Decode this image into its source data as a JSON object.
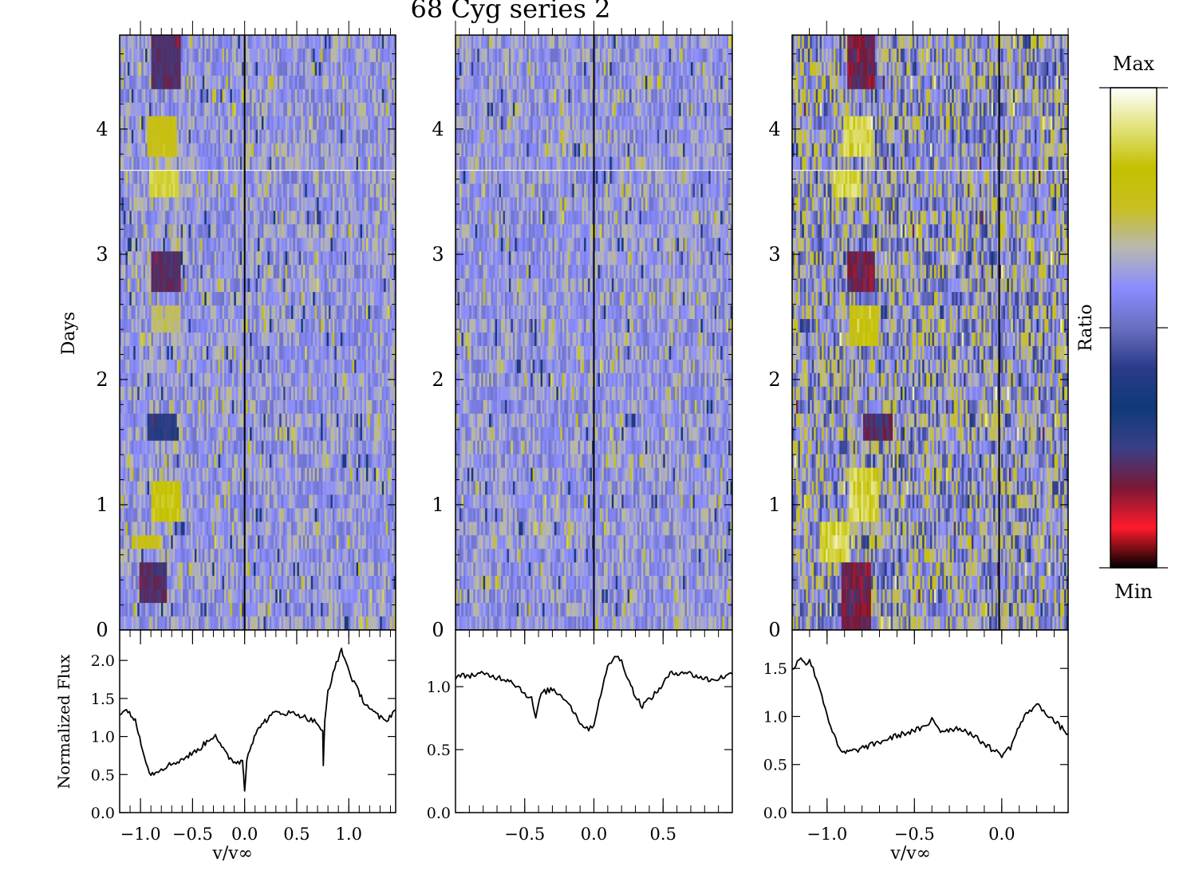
{
  "figure": {
    "title": "68 Cyg series 2",
    "colorbar": {
      "label": "Ratio",
      "max_label": "Max",
      "min_label": "Min"
    }
  },
  "colormap": [
    "#000000",
    "#ff1a2c",
    "#7a1835",
    "#3a3f88",
    "#0f3a78",
    "#2b3a8a",
    "#6a6fc0",
    "#8a8cff",
    "#b8b8b0",
    "#c8bf20",
    "#c4c000",
    "#e2e27a",
    "#ffffff"
  ],
  "chart_data": [
    {
      "type": "heatmap",
      "panel": "left",
      "ylabel": "Days",
      "ylim": [
        0,
        4.75
      ],
      "y_ticks": [
        "0",
        "1",
        "2",
        "3",
        "4"
      ],
      "xlim": [
        -1.2,
        1.45
      ],
      "zero_line": true,
      "features": [
        {
          "v": -0.88,
          "t0": 0.2,
          "t1": 0.55,
          "level": 0.05
        },
        {
          "v": -0.95,
          "t0": 0.6,
          "t1": 0.8,
          "level": 0.85
        },
        {
          "v": -0.75,
          "t0": 0.85,
          "t1": 1.2,
          "level": 0.95
        },
        {
          "v": -0.8,
          "t0": 1.5,
          "t1": 1.75,
          "level": 0.15
        },
        {
          "v": -0.75,
          "t0": 2.35,
          "t1": 2.55,
          "level": 0.75
        },
        {
          "v": -0.75,
          "t0": 2.75,
          "t1": 3.0,
          "level": 0.05
        },
        {
          "v": -0.78,
          "t0": 3.45,
          "t1": 3.65,
          "level": 1.0
        },
        {
          "v": -0.8,
          "t0": 3.75,
          "t1": 4.05,
          "level": 0.85
        },
        {
          "v": -0.75,
          "t0": 4.3,
          "t1": 4.7,
          "level": 0.05
        }
      ]
    },
    {
      "type": "heatmap",
      "panel": "middle",
      "ylim": [
        0,
        4.75
      ],
      "y_ticks": [
        "0",
        "1",
        "2",
        "3",
        "4"
      ],
      "xlim": [
        -1.0,
        1.0
      ],
      "zero_line": true,
      "features": []
    },
    {
      "type": "heatmap",
      "panel": "right",
      "ylim": [
        0,
        4.75
      ],
      "y_ticks": [
        "0",
        "1",
        "2",
        "3",
        "4"
      ],
      "xlim": [
        -1.2,
        0.4
      ],
      "zero_line": true,
      "features": [
        {
          "v": -0.83,
          "t0": 0.0,
          "t1": 0.55,
          "level": 0.0
        },
        {
          "v": -0.95,
          "t0": 0.55,
          "t1": 0.9,
          "level": 1.0
        },
        {
          "v": -0.78,
          "t0": 0.9,
          "t1": 1.3,
          "level": 1.0
        },
        {
          "v": -0.7,
          "t0": 1.5,
          "t1": 1.75,
          "level": 0.05
        },
        {
          "v": -0.78,
          "t0": 2.3,
          "t1": 2.6,
          "level": 0.9
        },
        {
          "v": -0.8,
          "t0": 2.75,
          "t1": 3.05,
          "level": 0.0
        },
        {
          "v": -0.88,
          "t0": 3.45,
          "t1": 3.7,
          "level": 1.0
        },
        {
          "v": -0.82,
          "t0": 3.75,
          "t1": 4.15,
          "level": 1.0
        },
        {
          "v": -0.8,
          "t0": 4.3,
          "t1": 4.75,
          "level": 0.0
        }
      ]
    },
    {
      "type": "line",
      "panel": "left-bottom",
      "ylabel": "Normalized Flux",
      "xlabel": "v/v∞",
      "xlim": [
        -1.2,
        1.45
      ],
      "ylim": [
        0.0,
        2.4
      ],
      "x_ticks": [
        "−1.0",
        "−0.5",
        "0.0",
        "0.5",
        "1.0"
      ],
      "y_ticks": [
        "0.0",
        "0.5",
        "1.0",
        "1.5",
        "2.0"
      ],
      "x": [
        -1.2,
        -1.12,
        -1.05,
        -0.98,
        -0.93,
        -0.9,
        -0.8,
        -0.6,
        -0.45,
        -0.35,
        -0.28,
        -0.22,
        -0.15,
        -0.08,
        -0.02,
        -0.01,
        0.0,
        0.02,
        0.05,
        0.15,
        0.3,
        0.5,
        0.7,
        0.75,
        0.755,
        0.77,
        0.8,
        0.88,
        0.93,
        0.97,
        1.05,
        1.15,
        1.25,
        1.35,
        1.45
      ],
      "y": [
        1.3,
        1.35,
        1.2,
        0.85,
        0.6,
        0.5,
        0.58,
        0.7,
        0.82,
        0.95,
        1.03,
        0.85,
        0.72,
        0.66,
        0.68,
        0.5,
        0.3,
        0.7,
        0.85,
        1.15,
        1.32,
        1.3,
        1.18,
        1.05,
        0.62,
        1.2,
        1.6,
        1.95,
        2.15,
        1.98,
        1.7,
        1.45,
        1.3,
        1.2,
        1.35
      ]
    },
    {
      "type": "line",
      "panel": "middle-bottom",
      "xlim": [
        -1.0,
        1.0
      ],
      "ylim": [
        0.0,
        1.45
      ],
      "x_ticks": [
        "−0.5",
        "0.0",
        "0.5"
      ],
      "y_ticks": [
        "0.0",
        "0.5",
        "1.0"
      ],
      "x": [
        -1.0,
        -0.8,
        -0.6,
        -0.5,
        -0.45,
        -0.42,
        -0.38,
        -0.3,
        -0.2,
        -0.1,
        -0.05,
        0.0,
        0.05,
        0.1,
        0.15,
        0.2,
        0.3,
        0.35,
        0.45,
        0.55,
        0.65,
        0.75,
        0.85,
        1.0
      ],
      "y": [
        1.08,
        1.1,
        1.05,
        0.95,
        0.9,
        0.75,
        0.95,
        0.98,
        0.9,
        0.72,
        0.66,
        0.7,
        0.95,
        1.15,
        1.25,
        1.2,
        0.92,
        0.85,
        0.95,
        1.1,
        1.12,
        1.08,
        1.05,
        1.1
      ]
    },
    {
      "type": "line",
      "panel": "right-bottom",
      "xlabel": "v/v∞",
      "xlim": [
        -1.2,
        0.38
      ],
      "ylim": [
        0.0,
        1.9
      ],
      "x_ticks": [
        "−1.0",
        "−0.5",
        "0.0"
      ],
      "y_ticks": [
        "0.0",
        "0.5",
        "1.0",
        "1.5"
      ],
      "x": [
        -1.2,
        -1.15,
        -1.12,
        -1.1,
        -1.05,
        -1.02,
        -0.98,
        -0.95,
        -0.92,
        -0.85,
        -0.75,
        -0.6,
        -0.45,
        -0.42,
        -0.4,
        -0.35,
        -0.25,
        -0.2,
        -0.15,
        -0.1,
        -0.05,
        0.0,
        0.05,
        0.1,
        0.15,
        0.2,
        0.25,
        0.3,
        0.38
      ],
      "y": [
        1.5,
        1.62,
        1.55,
        1.58,
        1.35,
        1.15,
        0.9,
        0.75,
        0.62,
        0.64,
        0.7,
        0.8,
        0.88,
        0.9,
        0.99,
        0.85,
        0.88,
        0.85,
        0.78,
        0.72,
        0.65,
        0.6,
        0.68,
        0.9,
        1.05,
        1.12,
        1.05,
        0.95,
        0.82
      ]
    }
  ]
}
